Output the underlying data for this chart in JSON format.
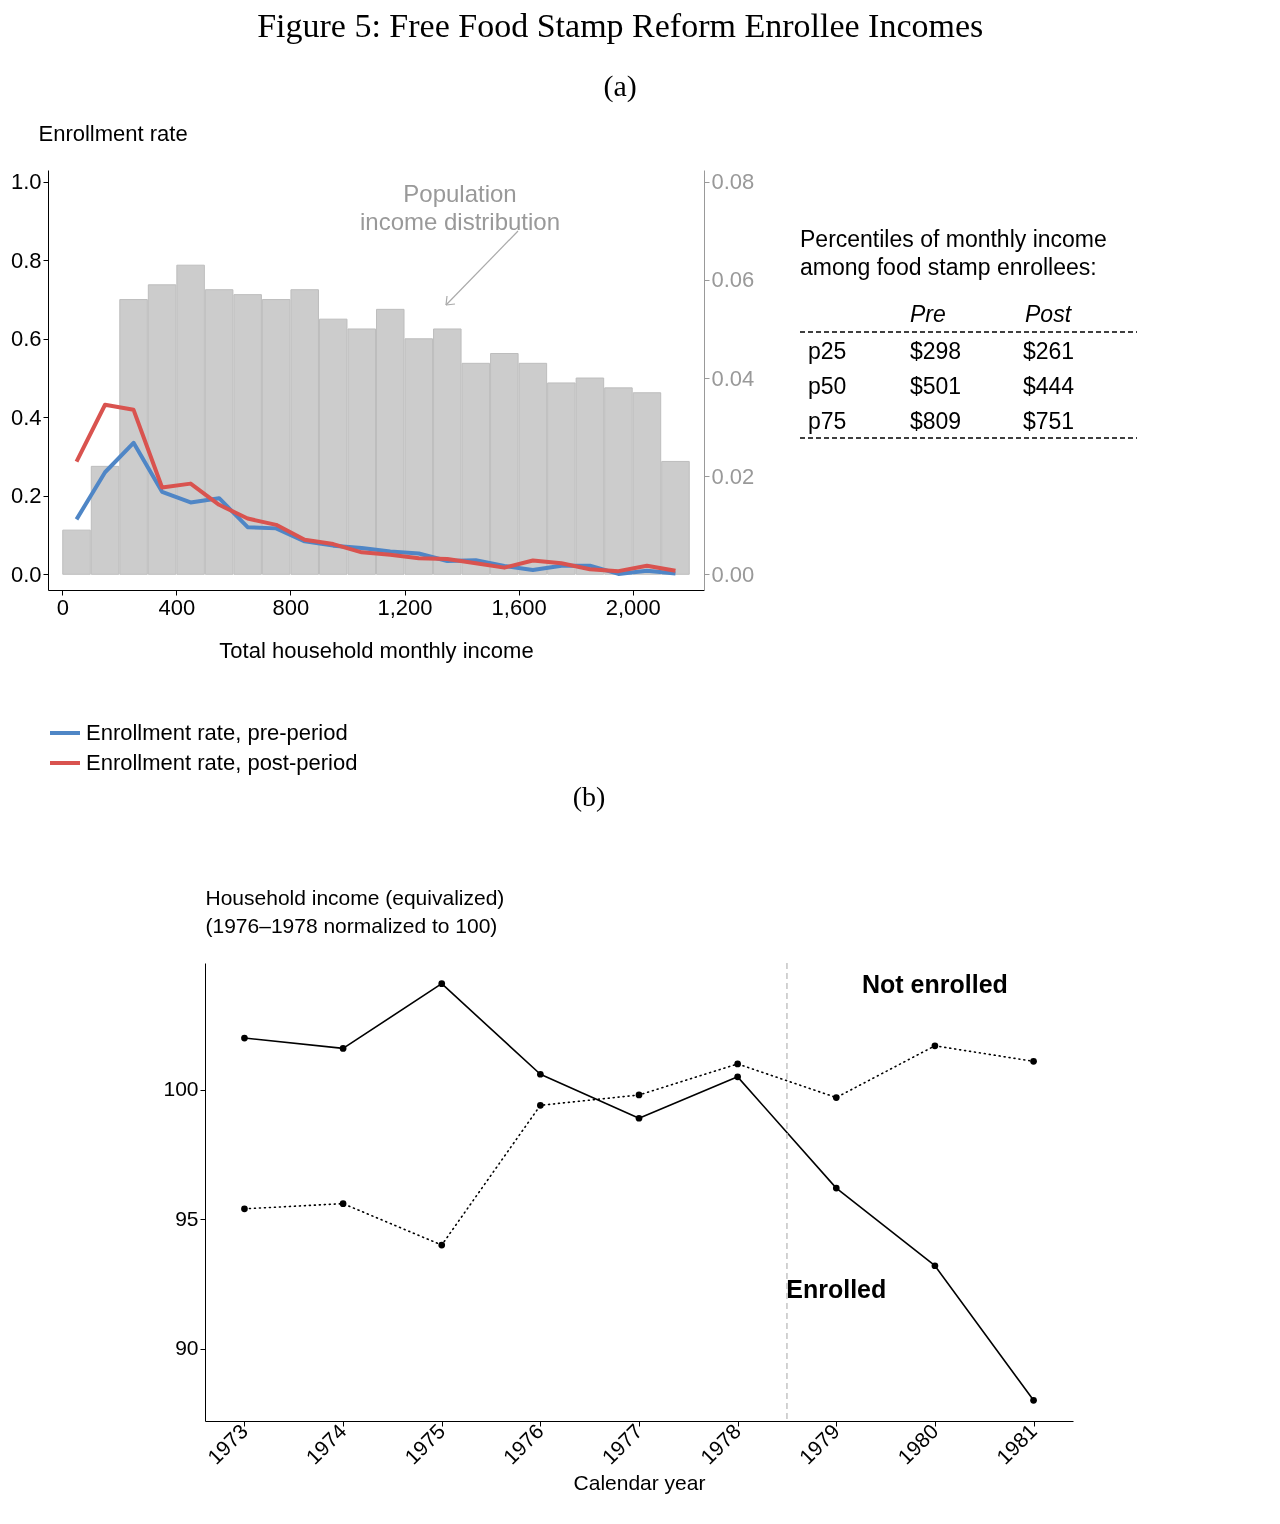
{
  "chart_data": [
    {
      "type": "line",
      "title": "Figure 5: Free Food Stamp Reform Enrollee Incomes",
      "subtitle": "(a)",
      "xlabel": "Total household monthly income",
      "ylabel": "Enrollment rate",
      "x": [
        50,
        150,
        250,
        350,
        450,
        550,
        650,
        750,
        850,
        950,
        1050,
        1150,
        1250,
        1350,
        1450,
        1550,
        1650,
        1750,
        1850,
        1950,
        2050,
        2150
      ],
      "series": [
        {
          "type": "bar",
          "axis": "y2",
          "color": "#cccccc",
          "values": [
            0.009,
            0.022,
            0.056,
            0.059,
            0.063,
            0.058,
            0.057,
            0.056,
            0.058,
            0.052,
            0.05,
            0.054,
            0.048,
            0.05,
            0.043,
            0.045,
            0.043,
            0.039,
            0.04,
            0.038,
            0.037,
            0.023
          ]
        },
        {
          "name": "Enrollment rate, pre-period",
          "color": "#4f86c6",
          "values": [
            0.14,
            0.26,
            0.335,
            0.21,
            0.183,
            0.194,
            0.12,
            0.117,
            0.084,
            0.073,
            0.067,
            0.058,
            0.053,
            0.034,
            0.036,
            0.021,
            0.011,
            0.022,
            0.022,
            0.001,
            0.009,
            0.002
          ]
        },
        {
          "name": "Enrollment rate, post-period",
          "color": "#d9534f",
          "values": [
            0.287,
            0.432,
            0.419,
            0.221,
            0.231,
            0.177,
            0.142,
            0.126,
            0.088,
            0.077,
            0.056,
            0.05,
            0.041,
            0.039,
            0.028,
            0.017,
            0.035,
            0.028,
            0.013,
            0.008,
            0.022,
            0.009
          ]
        }
      ],
      "xlim": [
        -50,
        2250
      ],
      "xticks": [
        0,
        400,
        800,
        {
          "value": 1200,
          "label": "1,200"
        },
        {
          "value": 1600,
          "label": "1,600"
        },
        {
          "value": 2000,
          "label": "2,000"
        }
      ],
      "ylim": [
        -0.04,
        1.03
      ],
      "yticks": [
        {
          "value": 0,
          "label": "0.0"
        },
        0.2,
        0.4,
        0.6,
        0.8,
        {
          "value": 1,
          "label": "1.0"
        }
      ],
      "y2lim": [
        -0.0032,
        0.0824
      ],
      "y2ticks": [
        {
          "value": 0,
          "label": "0.00"
        },
        0.02,
        0.04,
        0.06,
        {
          "value": 0.08,
          "label": "0.08"
        }
      ],
      "annotations": [
        "Population\nincome distribution"
      ],
      "legend": "bottom",
      "grid": false
    },
    {
      "type": "line",
      "title": "(b)",
      "xlabel": "Calendar year",
      "ylabel": "Household income (equivalized)\n(1976–1978 normalized to 100)",
      "x": [
        1973,
        1974,
        1975,
        1976,
        1977,
        1978,
        1979,
        1980,
        1981
      ],
      "series": [
        {
          "name": "Enrolled",
          "color": "#000000",
          "line_style": "solid",
          "values": [
            102.0,
            101.6,
            104.1,
            100.6,
            98.9,
            100.5,
            96.2,
            93.2,
            88.0
          ]
        },
        {
          "name": "Not enrolled",
          "color": "#000000",
          "line_style": "dotted",
          "values": [
            95.4,
            95.6,
            94.0,
            99.4,
            99.8,
            101.0,
            99.7,
            101.7,
            101.1
          ]
        }
      ],
      "xlim": [
        1972.6,
        1981.4
      ],
      "xticks": [
        1973,
        1974,
        1975,
        1976,
        1977,
        1978,
        1979,
        1980,
        1981
      ],
      "ylim": [
        87.2,
        104.9
      ],
      "yticks": [
        90,
        95,
        100
      ],
      "ref_lines": [
        {
          "axis": "x",
          "value": 1978.5,
          "color": "#bbbbbb",
          "line_style": "dashed"
        }
      ],
      "marker": "circle",
      "legend": false,
      "grid": false
    },
    {
      "type": "other",
      "title": "Percentiles of monthly income\namong food stamp enrollees:",
      "annotations": [
        "Pre",
        "Post",
        "p25",
        "$298",
        "$261",
        "p50",
        "$501",
        "$444",
        "p75",
        "$809",
        "$751"
      ]
    }
  ]
}
